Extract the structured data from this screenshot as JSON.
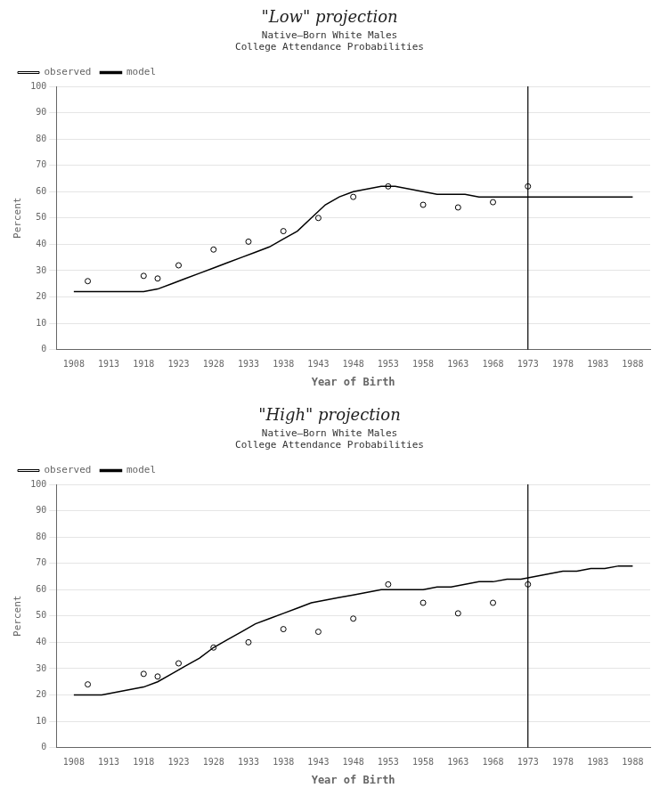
{
  "chart_data": [
    {
      "type": "line",
      "title": "\"Low\" projection",
      "subtitle": "Native–Born White Males\nCollege Attendance Probabilities",
      "x_label": "Year of Birth",
      "y_label": "Percent",
      "xlim": [
        1905.5,
        1990.5
      ],
      "ylim": [
        0,
        100
      ],
      "xticks": [
        1908,
        1913,
        1918,
        1923,
        1928,
        1933,
        1938,
        1943,
        1948,
        1953,
        1958,
        1963,
        1968,
        1973,
        1978,
        1983,
        1988
      ],
      "yticks": [
        0,
        10,
        20,
        30,
        40,
        50,
        60,
        70,
        80,
        90,
        100
      ],
      "grid": "y",
      "legend": "upper left",
      "vline": {
        "x": 1973,
        "color": "#000000"
      },
      "series": [
        {
          "name": "model",
          "type": "line",
          "color": "#000000",
          "x": [
            1908,
            1910,
            1912,
            1914,
            1916,
            1918,
            1920,
            1922,
            1924,
            1926,
            1928,
            1930,
            1932,
            1934,
            1936,
            1938,
            1940,
            1942,
            1944,
            1946,
            1948,
            1950,
            1952,
            1954,
            1956,
            1958,
            1960,
            1962,
            1964,
            1966,
            1968,
            1970,
            1972,
            1974,
            1976,
            1978,
            1980,
            1982,
            1984,
            1986,
            1988
          ],
          "values": [
            22,
            22,
            22,
            22,
            22,
            22,
            23,
            25,
            27,
            29,
            31,
            33,
            35,
            37,
            39,
            42,
            45,
            50,
            55,
            58,
            60,
            61,
            62,
            62,
            61,
            60,
            59,
            59,
            59,
            58,
            58,
            58,
            58,
            58,
            58,
            58,
            58,
            58,
            58,
            58,
            58
          ]
        },
        {
          "name": "observed",
          "type": "scatter",
          "marker": "circle",
          "color": "#000000",
          "x": [
            1910,
            1918,
            1920,
            1923,
            1928,
            1933,
            1938,
            1943,
            1948,
            1953,
            1958,
            1963,
            1968,
            1973
          ],
          "values": [
            26,
            28,
            27,
            32,
            38,
            41,
            45,
            50,
            58,
            62,
            55,
            54,
            56,
            62
          ]
        }
      ]
    },
    {
      "type": "line",
      "title": "\"High\" projection",
      "subtitle": "Native–Born White Males\nCollege Attendance Probabilities",
      "x_label": "Year of Birth",
      "y_label": "Percent",
      "xlim": [
        1905.5,
        1990.5
      ],
      "ylim": [
        0,
        100
      ],
      "xticks": [
        1908,
        1913,
        1918,
        1923,
        1928,
        1933,
        1938,
        1943,
        1948,
        1953,
        1958,
        1963,
        1968,
        1973,
        1978,
        1983,
        1988
      ],
      "yticks": [
        0,
        10,
        20,
        30,
        40,
        50,
        60,
        70,
        80,
        90,
        100
      ],
      "grid": "y",
      "legend": "upper left",
      "vline": {
        "x": 1973,
        "color": "#000000"
      },
      "series": [
        {
          "name": "model",
          "type": "line",
          "color": "#000000",
          "x": [
            1908,
            1910,
            1912,
            1914,
            1916,
            1918,
            1920,
            1922,
            1924,
            1926,
            1928,
            1930,
            1932,
            1934,
            1936,
            1938,
            1940,
            1942,
            1944,
            1946,
            1948,
            1950,
            1952,
            1954,
            1956,
            1958,
            1960,
            1962,
            1964,
            1966,
            1968,
            1970,
            1972,
            1974,
            1976,
            1978,
            1980,
            1982,
            1984,
            1986,
            1988
          ],
          "values": [
            20,
            20,
            20,
            21,
            22,
            23,
            25,
            28,
            31,
            34,
            38,
            41,
            44,
            47,
            49,
            51,
            53,
            55,
            56,
            57,
            58,
            59,
            60,
            60,
            60,
            60,
            61,
            61,
            62,
            63,
            63,
            64,
            64,
            65,
            66,
            67,
            67,
            68,
            68,
            69,
            69
          ]
        },
        {
          "name": "observed",
          "type": "scatter",
          "marker": "circle",
          "color": "#000000",
          "x": [
            1910,
            1918,
            1920,
            1923,
            1928,
            1933,
            1938,
            1943,
            1948,
            1953,
            1958,
            1963,
            1968,
            1973
          ],
          "values": [
            24,
            28,
            27,
            32,
            38,
            40,
            45,
            44,
            49,
            62,
            55,
            51,
            55,
            62
          ]
        }
      ]
    }
  ]
}
